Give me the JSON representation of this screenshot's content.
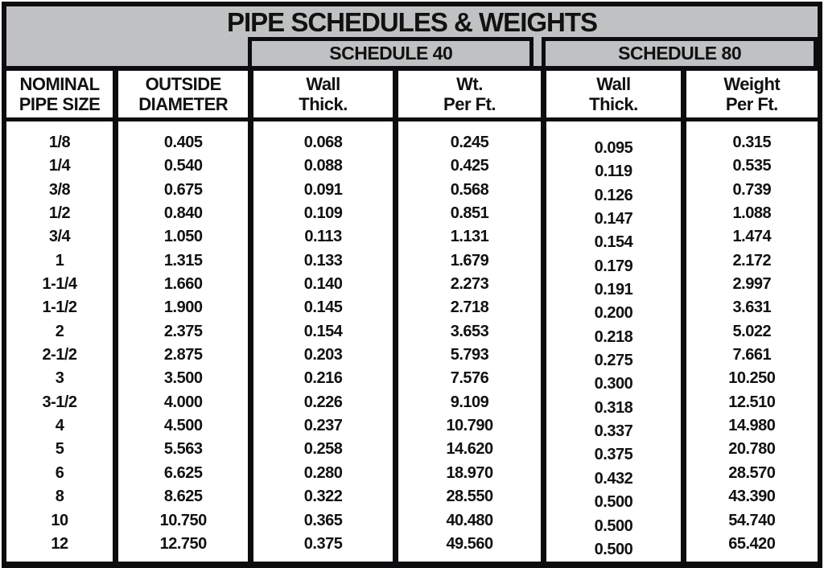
{
  "title": "PIPE SCHEDULES & WEIGHTS",
  "schedule40_label": "SCHEDULE 40",
  "schedule80_label": "SCHEDULE 80",
  "headers": [
    {
      "line1": "NOMINAL",
      "line2": "PIPE SIZE"
    },
    {
      "line1": "OUTSIDE",
      "line2": "DIAMETER"
    },
    {
      "line1": "Wall",
      "line2": "Thick."
    },
    {
      "line1": "Wt.",
      "line2": "Per Ft."
    },
    {
      "line1": "Wall",
      "line2": "Thick."
    },
    {
      "line1": "Weight",
      "line2": "Per Ft."
    }
  ],
  "chart_data": {
    "type": "table",
    "title": "PIPE SCHEDULES & WEIGHTS",
    "column_groups": [
      {
        "label": "SCHEDULE 40",
        "columns": [
          "Wall Thick.",
          "Wt. Per Ft."
        ]
      },
      {
        "label": "SCHEDULE 80",
        "columns": [
          "Wall Thick.",
          "Weight Per Ft."
        ]
      }
    ],
    "columns": [
      "NOMINAL PIPE SIZE",
      "OUTSIDE DIAMETER",
      "Wall Thick.",
      "Wt. Per Ft.",
      "Wall Thick.",
      "Weight Per Ft."
    ],
    "rows": [
      [
        "1/8",
        "0.405",
        "0.068",
        "0.245",
        "0.095",
        "0.315"
      ],
      [
        "1/4",
        "0.540",
        "0.088",
        "0.425",
        "0.119",
        "0.535"
      ],
      [
        "3/8",
        "0.675",
        "0.091",
        "0.568",
        "0.126",
        "0.739"
      ],
      [
        "1/2",
        "0.840",
        "0.109",
        "0.851",
        "0.147",
        "1.088"
      ],
      [
        "3/4",
        "1.050",
        "0.113",
        "1.131",
        "0.154",
        "1.474"
      ],
      [
        "1",
        "1.315",
        "0.133",
        "1.679",
        "0.179",
        "2.172"
      ],
      [
        "1-1/4",
        "1.660",
        "0.140",
        "2.273",
        "0.191",
        "2.997"
      ],
      [
        "1-1/2",
        "1.900",
        "0.145",
        "2.718",
        "0.200",
        "3.631"
      ],
      [
        "2",
        "2.375",
        "0.154",
        "3.653",
        "0.218",
        "5.022"
      ],
      [
        "2-1/2",
        "2.875",
        "0.203",
        "5.793",
        "0.275",
        "7.661"
      ],
      [
        "3",
        "3.500",
        "0.216",
        "7.576",
        "0.300",
        "10.250"
      ],
      [
        "3-1/2",
        "4.000",
        "0.226",
        "9.109",
        "0.318",
        "12.510"
      ],
      [
        "4",
        "4.500",
        "0.237",
        "10.790",
        "0.337",
        "14.980"
      ],
      [
        "5",
        "5.563",
        "0.258",
        "14.620",
        "0.375",
        "20.780"
      ],
      [
        "6",
        "6.625",
        "0.280",
        "18.970",
        "0.432",
        "28.570"
      ],
      [
        "8",
        "8.625",
        "0.322",
        "28.550",
        "0.500",
        "43.390"
      ],
      [
        "10",
        "10.750",
        "0.365",
        "40.480",
        "0.500",
        "54.740"
      ],
      [
        "12",
        "12.750",
        "0.375",
        "49.560",
        "0.500",
        "65.420"
      ]
    ],
    "colors": {
      "band_gray": "#bfc1c2",
      "rule_black": "#0d0d0f",
      "cell_white": "#ffffff"
    }
  }
}
